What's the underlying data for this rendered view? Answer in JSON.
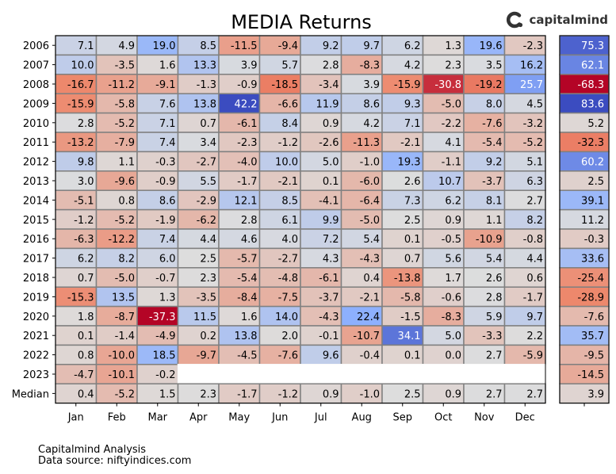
{
  "brand": {
    "name": "capitalmind",
    "logo_icon": "capitalmind-logo-icon"
  },
  "footer": {
    "line1": "Capitalmind Analysis",
    "line2": "Data source: niftyindices.com"
  },
  "colors": {
    "negative_extreme": "#b40426",
    "positive_extreme": "#3b4cc0",
    "neutral": "#dddddd",
    "grid": "#808080"
  },
  "chart_data": {
    "type": "heatmap",
    "title": "MEDIA Returns",
    "colormap": "coolwarm_r",
    "monthly_range": [
      -37.3,
      42.2
    ],
    "annual_range": [
      -68.3,
      83.6
    ],
    "months": [
      "Jan",
      "Feb",
      "Mar",
      "Apr",
      "May",
      "Jun",
      "Jul",
      "Aug",
      "Sep",
      "Oct",
      "Nov",
      "Dec"
    ],
    "rows": [
      {
        "label": "2006",
        "values": [
          7.1,
          4.9,
          19.0,
          8.5,
          -11.5,
          -9.4,
          9.2,
          9.7,
          6.2,
          1.3,
          19.6,
          -2.3
        ],
        "annual": 75.3
      },
      {
        "label": "2007",
        "values": [
          10.0,
          -3.5,
          1.6,
          13.3,
          3.9,
          5.7,
          2.8,
          -8.3,
          4.2,
          2.3,
          3.5,
          16.2
        ],
        "annual": 62.1
      },
      {
        "label": "2008",
        "values": [
          -16.7,
          -11.2,
          -9.1,
          -1.3,
          -0.9,
          -18.5,
          -3.4,
          3.9,
          -15.9,
          -30.8,
          -19.2,
          25.7
        ],
        "annual": -68.3
      },
      {
        "label": "2009",
        "values": [
          -15.9,
          -5.8,
          7.6,
          13.8,
          42.2,
          -6.6,
          11.9,
          8.6,
          9.3,
          -5.0,
          8.0,
          4.5
        ],
        "annual": 83.6
      },
      {
        "label": "2010",
        "values": [
          2.8,
          -5.2,
          7.1,
          0.7,
          -6.1,
          8.4,
          0.9,
          4.2,
          7.1,
          -2.2,
          -7.6,
          -3.2
        ],
        "annual": 5.2
      },
      {
        "label": "2011",
        "values": [
          -13.2,
          -7.9,
          7.4,
          3.4,
          -2.3,
          -1.2,
          -2.6,
          -11.3,
          -2.1,
          4.1,
          -5.4,
          -5.2
        ],
        "annual": -32.3
      },
      {
        "label": "2012",
        "values": [
          9.8,
          1.1,
          -0.3,
          -2.7,
          -4.0,
          10.0,
          5.0,
          -1.0,
          19.3,
          -1.1,
          9.2,
          5.1
        ],
        "annual": 60.2
      },
      {
        "label": "2013",
        "values": [
          3.0,
          -9.6,
          -0.9,
          5.5,
          -1.7,
          -2.1,
          0.1,
          -6.0,
          2.6,
          10.7,
          -3.7,
          6.3
        ],
        "annual": 2.5
      },
      {
        "label": "2014",
        "values": [
          -5.1,
          0.8,
          8.6,
          -2.9,
          12.1,
          8.5,
          -4.1,
          -6.4,
          7.3,
          6.2,
          8.1,
          2.7
        ],
        "annual": 39.1
      },
      {
        "label": "2015",
        "values": [
          -1.2,
          -5.2,
          -1.9,
          -6.2,
          2.8,
          6.1,
          9.9,
          -5.0,
          2.5,
          0.9,
          1.1,
          8.2
        ],
        "annual": 11.2
      },
      {
        "label": "2016",
        "values": [
          -6.3,
          -12.2,
          7.4,
          4.4,
          4.6,
          4.0,
          7.2,
          5.4,
          0.1,
          -0.5,
          -10.9,
          -0.8
        ],
        "annual": -0.3
      },
      {
        "label": "2017",
        "values": [
          6.2,
          8.2,
          6.0,
          2.5,
          -5.7,
          -2.7,
          4.3,
          -4.3,
          0.7,
          5.6,
          5.4,
          4.4
        ],
        "annual": 33.6
      },
      {
        "label": "2018",
        "values": [
          0.7,
          -5.0,
          -0.7,
          2.3,
          -5.4,
          -4.8,
          -6.1,
          0.4,
          -13.8,
          1.7,
          2.6,
          0.6
        ],
        "annual": -25.4
      },
      {
        "label": "2019",
        "values": [
          -15.3,
          13.5,
          1.3,
          -3.5,
          -8.4,
          -7.5,
          -3.7,
          -2.1,
          -5.8,
          -0.6,
          2.8,
          -1.7
        ],
        "annual": -28.9
      },
      {
        "label": "2020",
        "values": [
          1.8,
          -8.7,
          -37.3,
          11.5,
          1.6,
          14.0,
          -4.3,
          22.4,
          -1.5,
          -8.3,
          5.9,
          9.7
        ],
        "annual": -7.6
      },
      {
        "label": "2021",
        "values": [
          0.1,
          -1.4,
          -4.9,
          0.2,
          13.8,
          2.0,
          -0.1,
          -10.7,
          34.1,
          5.0,
          -3.3,
          2.2
        ],
        "annual": 35.7
      },
      {
        "label": "2022",
        "values": [
          0.8,
          -10.0,
          18.5,
          -9.7,
          -4.5,
          -7.6,
          9.6,
          -0.4,
          0.1,
          0.0,
          2.7,
          -5.9
        ],
        "annual": -9.5
      },
      {
        "label": "2023",
        "values": [
          -4.7,
          -10.1,
          -0.2,
          null,
          null,
          null,
          null,
          null,
          null,
          null,
          null,
          null
        ],
        "annual": -14.5
      },
      {
        "label": "Median",
        "values": [
          0.4,
          -5.2,
          1.5,
          2.3,
          -1.7,
          -1.2,
          0.9,
          -1.0,
          2.5,
          0.9,
          2.7,
          2.7
        ],
        "annual": 3.9
      }
    ]
  }
}
